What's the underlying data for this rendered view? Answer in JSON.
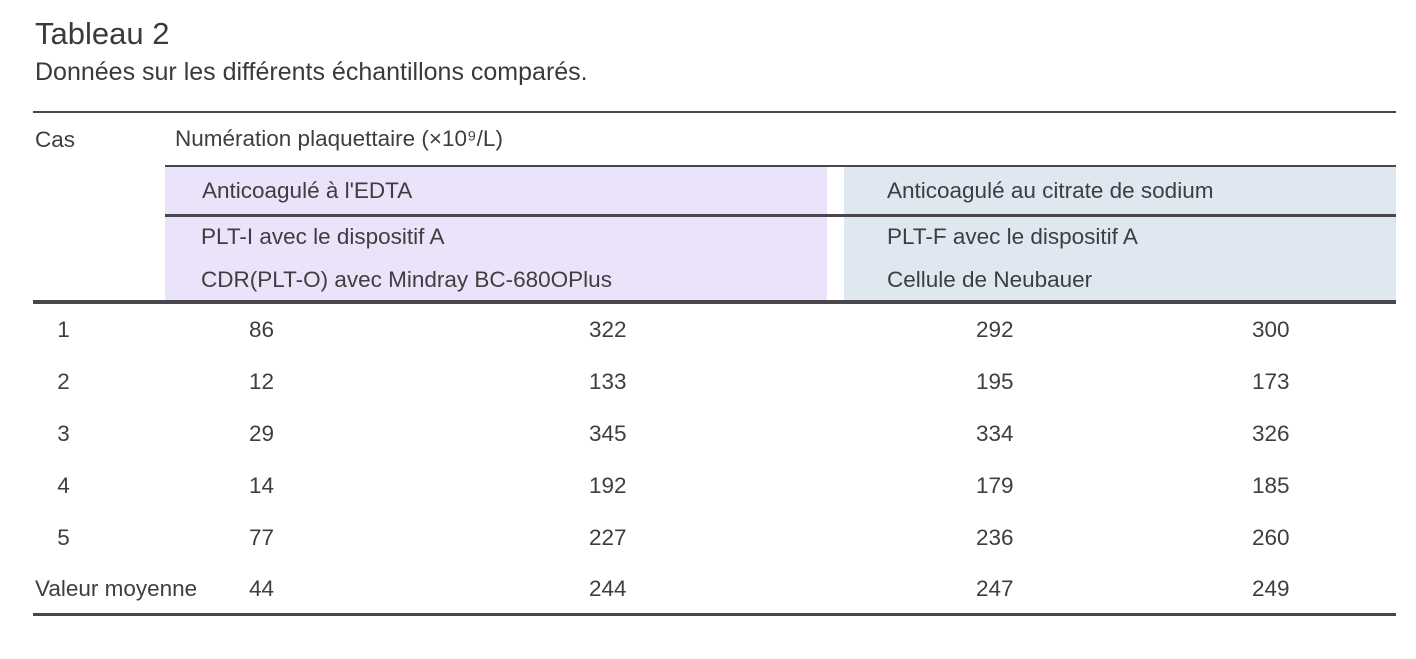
{
  "title": "Tableau 2",
  "subtitle": "Données sur les différents échantillons comparés.",
  "colors": {
    "edta_band": "#eae3fa",
    "citrate_band": "#dfe7f0",
    "rule": "#47474d",
    "text": "#3e3e40"
  },
  "table": {
    "case_header": "Cas",
    "main_header": "Numération plaquettaire (×10⁹/L)",
    "group_headers": {
      "edta": "Anticoagulé à l'EDTA",
      "citrate": "Anticoagulé au citrate de sodium"
    },
    "method_headers": {
      "edta_line1": "PLT-I avec le dispositif A",
      "edta_line2": "CDR(PLT-O) avec Mindray BC-680OPlus",
      "citrate_line1": "PLT-F avec le dispositif A",
      "citrate_line2": "Cellule de Neubauer"
    },
    "rows": [
      {
        "case": "1",
        "values": [
          "86",
          "322",
          "292",
          "300"
        ]
      },
      {
        "case": "2",
        "values": [
          "12",
          "133",
          "195",
          "173"
        ]
      },
      {
        "case": "3",
        "values": [
          "29",
          "345",
          "334",
          "326"
        ]
      },
      {
        "case": "4",
        "values": [
          "14",
          "192",
          "179",
          "185"
        ]
      },
      {
        "case": "5",
        "values": [
          "77",
          "227",
          "236",
          "260"
        ]
      },
      {
        "case": "Valeur moyenne",
        "values": [
          "44",
          "244",
          "247",
          "249"
        ]
      }
    ]
  }
}
